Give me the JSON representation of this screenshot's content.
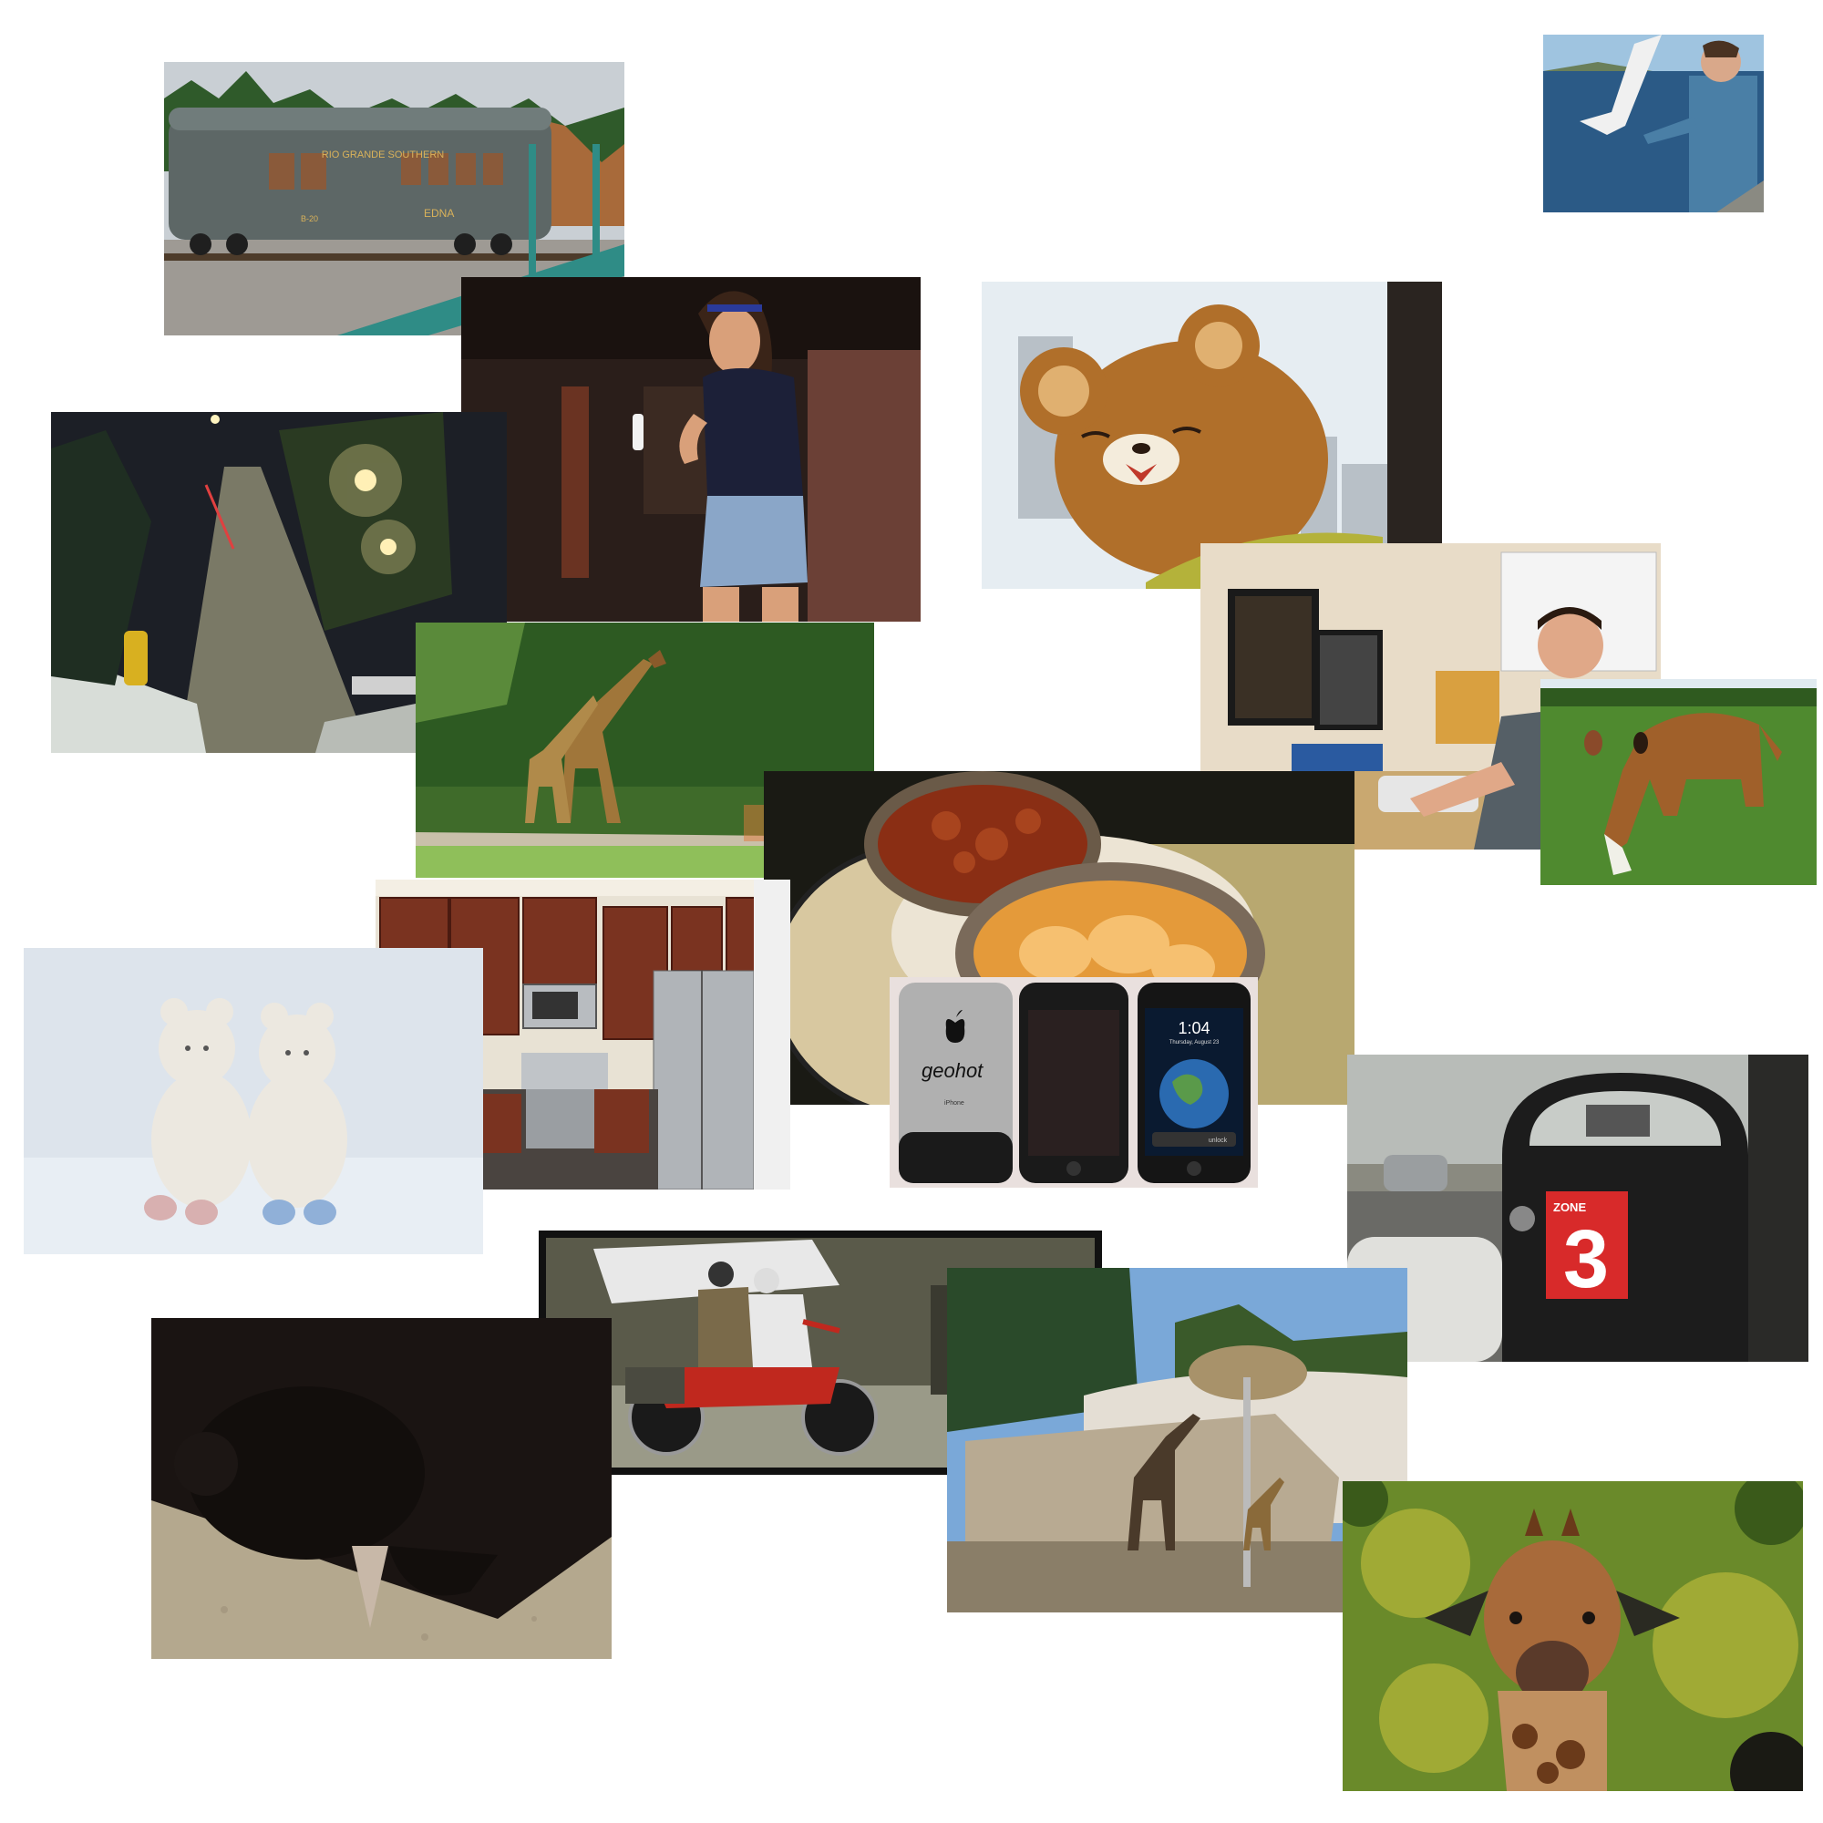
{
  "collage": {
    "photos": [
      {
        "id": "train",
        "subject": "train-car",
        "texts": {
          "company": "RIO GRANDE SOUTHERN",
          "car_name": "EDNA",
          "car_number": "B-20"
        }
      },
      {
        "id": "seagull",
        "subject": "man-feeding-seagull"
      },
      {
        "id": "woman",
        "subject": "woman-with-wii-remote"
      },
      {
        "id": "bear",
        "subject": "rilakkuma-plush"
      },
      {
        "id": "street",
        "subject": "snowy-street-at-night"
      },
      {
        "id": "giraffes1",
        "subject": "two-giraffes"
      },
      {
        "id": "office",
        "subject": "man-at-computer"
      },
      {
        "id": "cow",
        "subject": "cow-grazing"
      },
      {
        "id": "food",
        "subject": "bowls-of-food"
      },
      {
        "id": "kitchen",
        "subject": "kitchen"
      },
      {
        "id": "bears",
        "subject": "two-white-teddy-bears"
      },
      {
        "id": "iphones",
        "subject": "three-iphones",
        "texts": {
          "engraving": "geohot",
          "time": "1:04",
          "date": "Thursday, August 23",
          "unlock": "unlock",
          "brand": "iPhone"
        }
      },
      {
        "id": "meter",
        "subject": "parking-meter",
        "texts": {
          "zone_label": "ZONE",
          "zone_number": "3"
        }
      },
      {
        "id": "cat",
        "subject": "black-cat"
      },
      {
        "id": "motorcycle",
        "subject": "motorcycle-riders"
      },
      {
        "id": "giraffes2",
        "subject": "giraffes-in-enclosure"
      },
      {
        "id": "giraffe3",
        "subject": "giraffe-head"
      }
    ]
  }
}
